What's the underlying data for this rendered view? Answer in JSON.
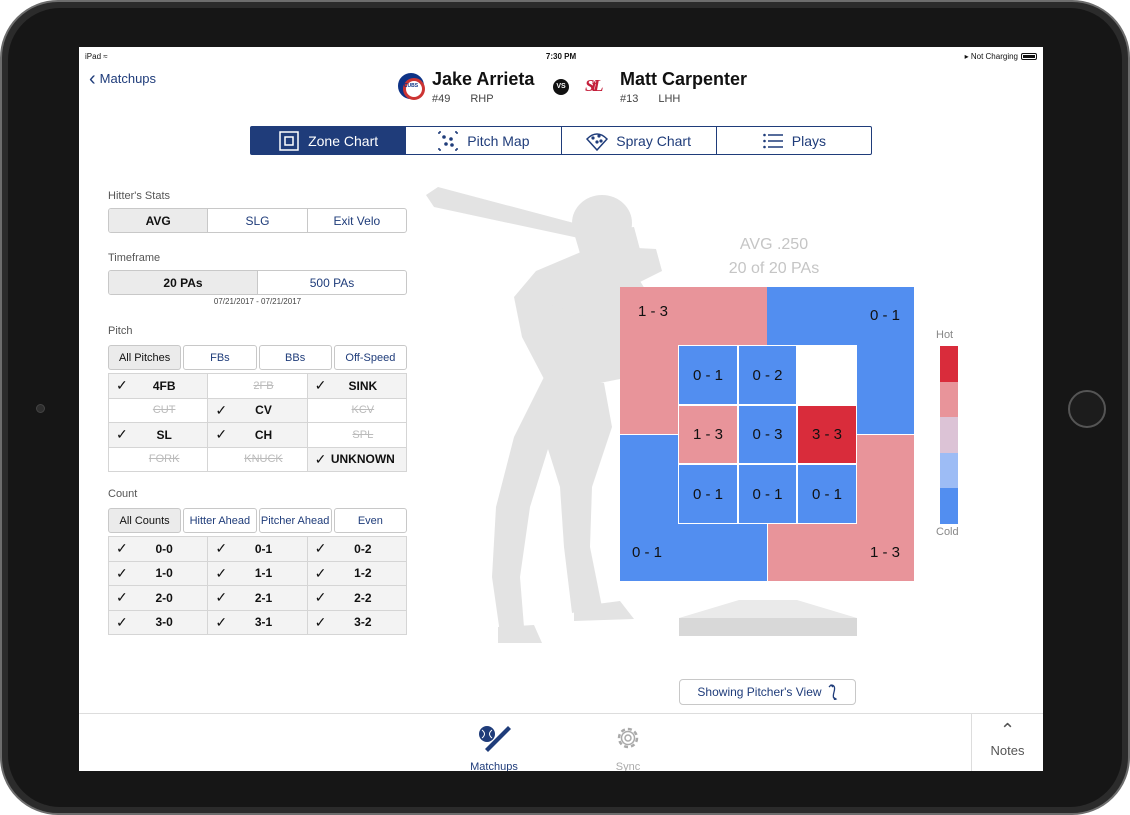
{
  "status_bar": {
    "device": "iPad",
    "time": "7:30 PM",
    "battery": "Not Charging"
  },
  "nav": {
    "back_label": "Matchups"
  },
  "pitcher": {
    "name": "Jake Arrieta",
    "number": "#49",
    "hand": "RHP",
    "team_icon": "cubs-logo"
  },
  "vs_label": "VS",
  "hitter": {
    "name": "Matt Carpenter",
    "number": "#13",
    "hand": "LHH",
    "team_icon": "cardinals-logo"
  },
  "tabs": [
    {
      "label": "Zone Chart",
      "icon": "zone-chart-icon",
      "active": true
    },
    {
      "label": "Pitch Map",
      "icon": "pitch-map-icon",
      "active": false
    },
    {
      "label": "Spray Chart",
      "icon": "spray-chart-icon",
      "active": false
    },
    {
      "label": "Plays",
      "icon": "list-icon",
      "active": false
    }
  ],
  "hitter_stats": {
    "label": "Hitter's Stats",
    "options": [
      "AVG",
      "SLG",
      "Exit Velo"
    ],
    "selected": "AVG"
  },
  "timeframe": {
    "label": "Timeframe",
    "options": [
      "20 PAs",
      "500 PAs"
    ],
    "selected": "20 PAs",
    "date_range": "07/21/2017 - 07/21/2017"
  },
  "pitch": {
    "label": "Pitch",
    "filters": [
      "All Pitches",
      "FBs",
      "BBs",
      "Off-Speed"
    ],
    "selected": "All Pitches",
    "types": [
      {
        "label": "4FB",
        "on": true
      },
      {
        "label": "2FB",
        "on": false
      },
      {
        "label": "SINK",
        "on": true
      },
      {
        "label": "CUT",
        "on": false
      },
      {
        "label": "CV",
        "on": true
      },
      {
        "label": "KCV",
        "on": false
      },
      {
        "label": "SL",
        "on": true
      },
      {
        "label": "CH",
        "on": true
      },
      {
        "label": "SPL",
        "on": false
      },
      {
        "label": "FORK",
        "on": false
      },
      {
        "label": "KNUCK",
        "on": false
      },
      {
        "label": "UNKNOWN",
        "on": true
      }
    ]
  },
  "count": {
    "label": "Count",
    "filters": [
      "All Counts",
      "Hitter Ahead",
      "Pitcher Ahead",
      "Even"
    ],
    "selected": "All Counts",
    "counts": [
      {
        "label": "0-0",
        "on": true
      },
      {
        "label": "0-1",
        "on": true
      },
      {
        "label": "0-2",
        "on": true
      },
      {
        "label": "1-0",
        "on": true
      },
      {
        "label": "1-1",
        "on": true
      },
      {
        "label": "1-2",
        "on": true
      },
      {
        "label": "2-0",
        "on": true
      },
      {
        "label": "2-1",
        "on": true
      },
      {
        "label": "2-2",
        "on": true
      },
      {
        "label": "3-0",
        "on": true
      },
      {
        "label": "3-1",
        "on": true
      },
      {
        "label": "3-2",
        "on": true
      }
    ]
  },
  "zone_chart": {
    "summary_avg": "AVG .250",
    "summary_pas": "20 of 20 PAs",
    "outer": {
      "top_left": "1 - 3",
      "top_right": "0 - 1",
      "bottom_left": "0 - 1",
      "bottom_right": "1 - 3"
    },
    "inner": [
      [
        "0 - 1",
        "0 - 2",
        ""
      ],
      [
        "1 - 3",
        "0 - 3",
        "3 - 3"
      ],
      [
        "0 - 1",
        "0 - 1",
        "0 - 1"
      ]
    ],
    "colors": {
      "hot": "#d92c3b",
      "warm": "#e8949a",
      "neutral": "#ffffff",
      "cool": "#528ef0"
    },
    "legend": {
      "hot_label": "Hot",
      "cold_label": "Cold",
      "colors": [
        "#d92c3b",
        "#e8949a",
        "#dcc3d6",
        "#9dbcf5",
        "#528ef0"
      ]
    }
  },
  "view_toggle": {
    "label": "Showing Pitcher's View",
    "icon": "flip-icon"
  },
  "tab_bar": [
    {
      "label": "Matchups",
      "icon": "baseball-bat-icon",
      "active": true
    },
    {
      "label": "Sync",
      "icon": "gear-icon",
      "active": false
    }
  ],
  "notes": {
    "label": "Notes",
    "icon": "chevron-up-icon"
  }
}
